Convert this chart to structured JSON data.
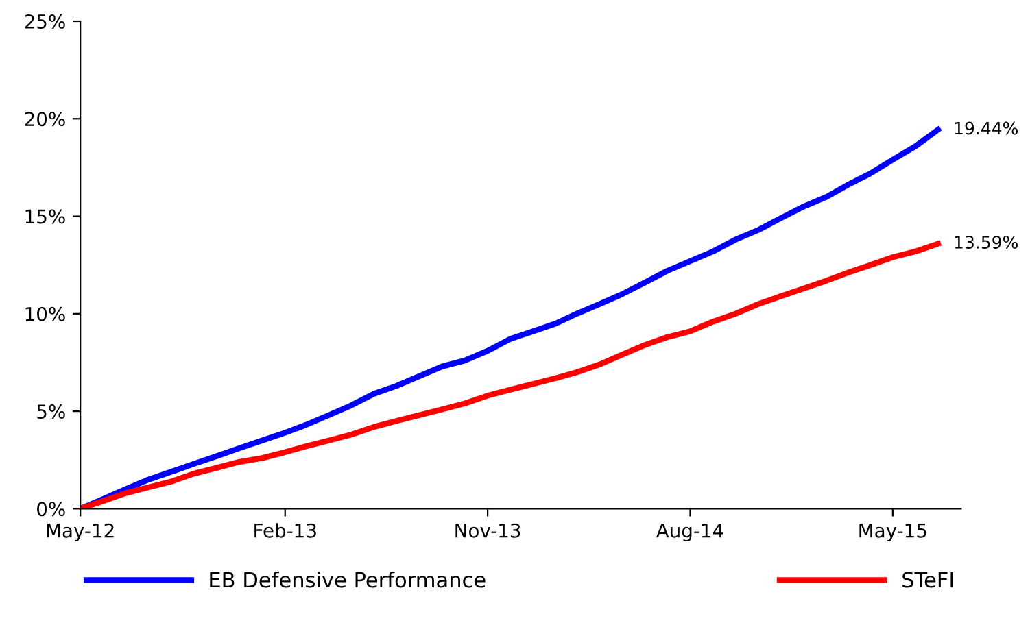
{
  "chart_data": {
    "type": "line",
    "x": [
      "2012-05",
      "2012-06",
      "2012-07",
      "2012-08",
      "2012-09",
      "2012-10",
      "2012-11",
      "2012-12",
      "2013-01",
      "2013-02",
      "2013-03",
      "2013-04",
      "2013-05",
      "2013-06",
      "2013-07",
      "2013-08",
      "2013-09",
      "2013-10",
      "2013-11",
      "2013-12",
      "2014-01",
      "2014-02",
      "2014-03",
      "2014-04",
      "2014-05",
      "2014-06",
      "2014-07",
      "2014-08",
      "2014-09",
      "2014-10",
      "2014-11",
      "2014-12",
      "2015-01",
      "2015-02",
      "2015-03",
      "2015-04",
      "2015-05",
      "2015-06",
      "2015-07"
    ],
    "series": [
      {
        "name": "EB Defensive Performance",
        "color": "#0000ff",
        "values": [
          0,
          0.5,
          1.0,
          1.5,
          1.9,
          2.3,
          2.7,
          3.1,
          3.5,
          3.9,
          4.3,
          4.8,
          5.3,
          5.9,
          6.3,
          6.8,
          7.3,
          7.6,
          8.1,
          8.7,
          9.1,
          9.5,
          10.0,
          10.5,
          11.0,
          11.6,
          12.2,
          12.7,
          13.2,
          13.8,
          14.3,
          14.9,
          15.5,
          16.0,
          16.6,
          17.2,
          17.9,
          18.6,
          19.44
        ]
      },
      {
        "name": "STeFI",
        "color": "#ff0000",
        "values": [
          0,
          0.4,
          0.8,
          1.1,
          1.4,
          1.8,
          2.1,
          2.4,
          2.6,
          2.9,
          3.2,
          3.5,
          3.8,
          4.2,
          4.5,
          4.8,
          5.1,
          5.4,
          5.8,
          6.1,
          6.4,
          6.7,
          7.0,
          7.4,
          7.9,
          8.4,
          8.8,
          9.1,
          9.6,
          10.0,
          10.5,
          10.9,
          11.3,
          11.7,
          12.1,
          12.5,
          12.9,
          13.2,
          13.59
        ]
      }
    ],
    "annotations": [
      {
        "text": "19.44%",
        "x": "2015-07",
        "y": 19.44
      },
      {
        "text": "13.59%",
        "x": "2015-07",
        "y": 13.59
      }
    ],
    "xlim": [
      "2012-05",
      "2015-08"
    ],
    "xticks": [
      {
        "value": "2012-05",
        "label": "May-12"
      },
      {
        "value": "2013-02",
        "label": "Feb-13"
      },
      {
        "value": "2013-11",
        "label": "Nov-13"
      },
      {
        "value": "2014-08",
        "label": "Aug-14"
      },
      {
        "value": "2015-05",
        "label": "May-15"
      }
    ],
    "ylim": [
      0,
      25
    ],
    "yticks": [
      {
        "value": 0,
        "label": "0%"
      },
      {
        "value": 5,
        "label": "5%"
      },
      {
        "value": 10,
        "label": "10%"
      },
      {
        "value": 15,
        "label": "15%"
      },
      {
        "value": 20,
        "label": "20%"
      },
      {
        "value": 25,
        "label": "25%"
      }
    ],
    "grid": false,
    "legend": "bottom",
    "marker": "none",
    "line_style": "solid"
  }
}
